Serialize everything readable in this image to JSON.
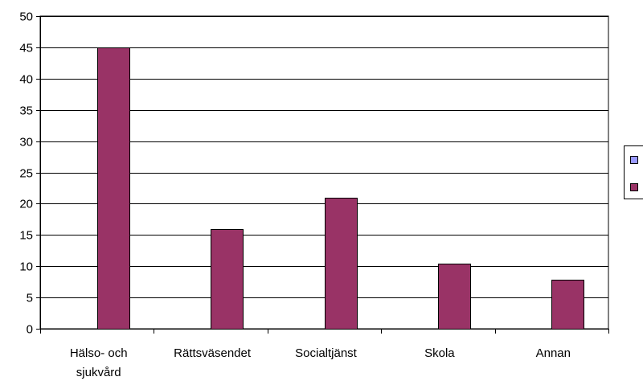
{
  "chart_data": {
    "type": "bar",
    "title": "",
    "xlabel": "",
    "ylabel": "",
    "ylim": [
      0,
      50
    ],
    "y_ticks": [
      "0",
      "5",
      "10",
      "15",
      "20",
      "25",
      "30",
      "35",
      "40",
      "45",
      "50"
    ],
    "grid": true,
    "legend_position": "right",
    "categories": [
      [
        "Hälso- och",
        "sjukvård"
      ],
      [
        "Rättsväsendet"
      ],
      [
        "Socialtjänst"
      ],
      [
        "Skola"
      ],
      [
        "Annan"
      ]
    ],
    "series": [
      {
        "values": [
          0,
          0,
          0,
          0,
          0
        ],
        "color": "#9999ff"
      },
      {
        "values": [
          45,
          16,
          21,
          10.4,
          7.8
        ],
        "color": "#993366"
      }
    ]
  }
}
